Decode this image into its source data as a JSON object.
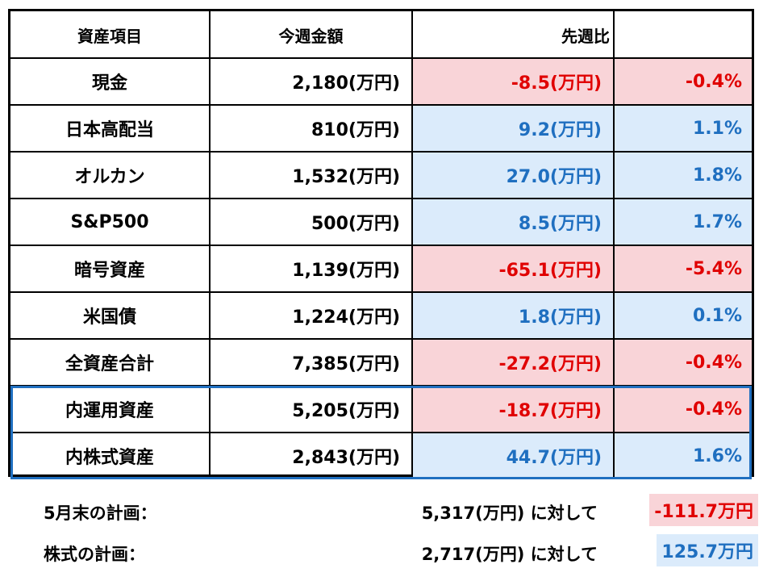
{
  "headers": {
    "item": "資産項目",
    "this_week": "今週金額",
    "vs_last_week": "先週比"
  },
  "rows": [
    {
      "item": "現金",
      "amount": "2,180(万円)",
      "diff": "-8.5(万円)",
      "pct": "-0.4%",
      "trend": "negative"
    },
    {
      "item": "日本高配当",
      "amount": "810(万円)",
      "diff": "9.2(万円)",
      "pct": "1.1%",
      "trend": "positive"
    },
    {
      "item": "オルカン",
      "amount": "1,532(万円)",
      "diff": "27.0(万円)",
      "pct": "1.8%",
      "trend": "positive"
    },
    {
      "item": "S&P500",
      "amount": "500(万円)",
      "diff": "8.5(万円)",
      "pct": "1.7%",
      "trend": "positive"
    },
    {
      "item": "暗号資産",
      "amount": "1,139(万円)",
      "diff": "-65.1(万円)",
      "pct": "-5.4%",
      "trend": "negative"
    },
    {
      "item": "米国債",
      "amount": "1,224(万円)",
      "diff": "1.8(万円)",
      "pct": "0.1%",
      "trend": "positive"
    },
    {
      "item": "全資産合計",
      "amount": "7,385(万円)",
      "diff": "-27.2(万円)",
      "pct": "-0.4%",
      "trend": "negative"
    },
    {
      "item": "内運用資産",
      "amount": "5,205(万円)",
      "diff": "-18.7(万円)",
      "pct": "-0.4%",
      "trend": "negative"
    },
    {
      "item": "内株式資産",
      "amount": "2,843(万円)",
      "diff": "44.7(万円)",
      "pct": "1.6%",
      "trend": "positive"
    }
  ],
  "plans": [
    {
      "label": "5月末の計画：",
      "value": "5,317(万円) に対して",
      "result": "-111.7万円",
      "trend": "negative"
    },
    {
      "label": "株式の計画：",
      "value": "2,717(万円) に対して",
      "result": "125.7万円",
      "trend": "positive"
    }
  ],
  "colors": {
    "negative_bg": "#f9d4d8",
    "negative_text": "#e00000",
    "positive_bg": "#dbebfb",
    "positive_text": "#1f6fc0",
    "highlight_border": "#1f6fc0"
  }
}
